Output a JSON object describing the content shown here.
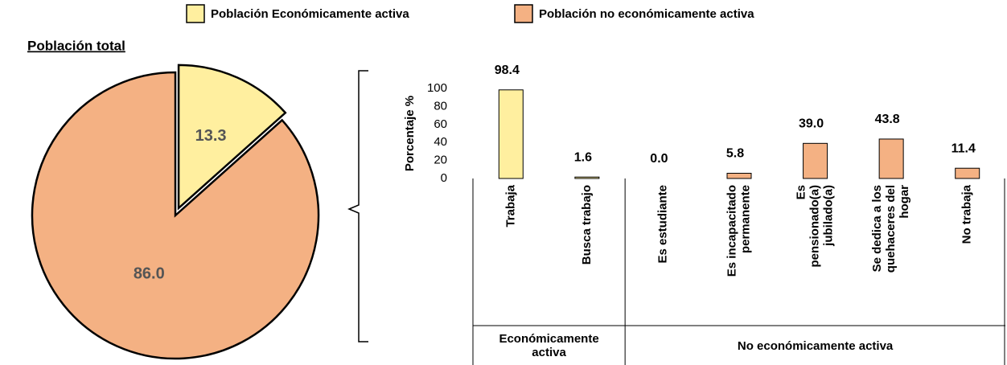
{
  "chart_data": [
    {
      "type": "pie",
      "title": "Población total",
      "categories": [
        "Población Económicamente activa",
        "Población no económicamente activa"
      ],
      "values": [
        13.3,
        86.0
      ],
      "value_labels": [
        "13.3",
        "86.0"
      ],
      "colors": [
        "#ffef9f",
        "#f4b183"
      ],
      "exploded": [
        true,
        false
      ]
    },
    {
      "type": "bar",
      "y_label": "Porcentaje %",
      "categories": [
        [
          "Trabaja"
        ],
        [
          "Busca trabajo"
        ],
        [
          "Es estudiante"
        ],
        [
          "Es incapacitado",
          "permanente"
        ],
        [
          "Es",
          "pensionado(a)",
          "jubilado(a)"
        ],
        [
          "Se dedica a los",
          "quehaceres del",
          "hogar"
        ],
        [
          "No trabaja"
        ]
      ],
      "values": [
        98.4,
        1.6,
        0.0,
        5.8,
        39.0,
        43.8,
        11.4
      ],
      "value_labels": [
        "98.4",
        "1.6",
        "0.0",
        "5.8",
        "39.0",
        "43.8",
        "11.4"
      ],
      "colors": [
        "#ffef9f",
        "#ffef9f",
        "#f4b183",
        "#f4b183",
        "#f4b183",
        "#f4b183",
        "#f4b183"
      ],
      "groups": [
        {
          "label": "Económicamente activa",
          "size": 2
        },
        {
          "label": "No económicamente activa",
          "size": 5
        }
      ],
      "ylim": [
        0,
        100
      ],
      "yticks": [
        0,
        20,
        40,
        60,
        80,
        100
      ]
    }
  ]
}
